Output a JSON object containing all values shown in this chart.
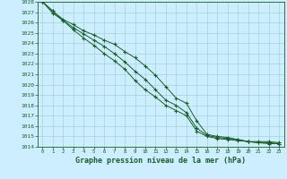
{
  "title": "Graphe pression niveau de la mer (hPa)",
  "background_color": "#cceeff",
  "grid_color": "#99cccc",
  "line_color": "#1a5c2a",
  "x_values": [
    0,
    1,
    2,
    3,
    4,
    5,
    6,
    7,
    8,
    9,
    10,
    11,
    12,
    13,
    14,
    15,
    16,
    17,
    18,
    19,
    20,
    21,
    22,
    23
  ],
  "ylim": [
    1014,
    1028
  ],
  "xlim": [
    -0.5,
    23.5
  ],
  "yticks": [
    1014,
    1015,
    1016,
    1017,
    1018,
    1019,
    1020,
    1021,
    1022,
    1023,
    1024,
    1025,
    1026,
    1027,
    1028
  ],
  "line1": [
    1028.0,
    1027.1,
    1026.3,
    1025.8,
    1025.2,
    1024.8,
    1024.3,
    1023.9,
    1023.2,
    1022.6,
    1021.8,
    1020.9,
    1019.8,
    1018.7,
    1018.2,
    1016.5,
    1015.2,
    1015.0,
    1014.9,
    1014.7,
    1014.5,
    1014.5,
    1014.5,
    1014.4
  ],
  "line2": [
    1028.0,
    1027.1,
    1026.2,
    1025.5,
    1024.9,
    1024.3,
    1023.7,
    1023.0,
    1022.2,
    1021.3,
    1020.5,
    1019.5,
    1018.5,
    1018.0,
    1017.3,
    1015.8,
    1015.1,
    1014.9,
    1014.8,
    1014.7,
    1014.5,
    1014.4,
    1014.4,
    1014.3
  ],
  "line3": [
    1028.0,
    1026.9,
    1026.2,
    1025.3,
    1024.5,
    1023.8,
    1023.0,
    1022.3,
    1021.5,
    1020.4,
    1019.5,
    1018.8,
    1018.0,
    1017.5,
    1017.0,
    1015.5,
    1015.0,
    1014.8,
    1014.7,
    1014.6,
    1014.5,
    1014.4,
    1014.3,
    1014.3
  ],
  "ylabel_fontsize": 5,
  "xlabel_fontsize": 5,
  "title_fontsize": 6
}
